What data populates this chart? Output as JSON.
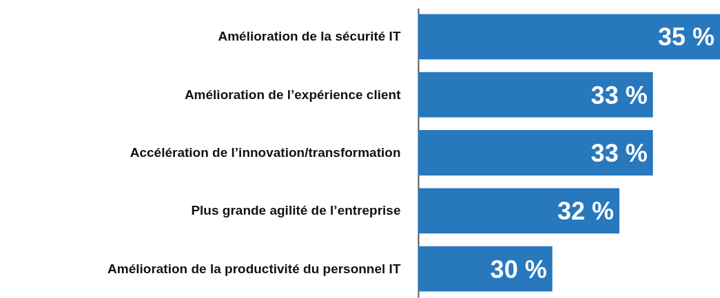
{
  "chart_data": {
    "type": "bar",
    "orientation": "horizontal",
    "categories": [
      "Amélioration de la sécurité IT",
      "Amélioration de l’expérience client",
      "Accélération de l’innovation/transformation",
      "Plus grande agilité de l’entreprise",
      "Amélioration de la productivité du personnel IT"
    ],
    "values": [
      35,
      33,
      33,
      32,
      30
    ],
    "value_labels": [
      "35 %",
      "33 %",
      "33 %",
      "32 %",
      "30 %"
    ],
    "color": "#2878bd",
    "xlim": [
      26,
      35
    ],
    "tick_labels": "y"
  }
}
